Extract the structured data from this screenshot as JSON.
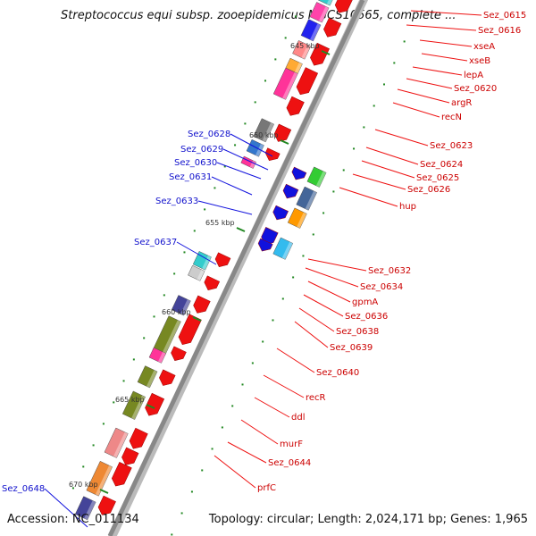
{
  "title": "Streptococcus equi subsp. zooepidemicus MGCS10565, complete ...",
  "footer": {
    "accession": "Accession: NC_011134",
    "topology": "Topology: circular; Length: 2,024,171 bp; Genes: 1,965"
  },
  "scale_labels": [
    "645 kbp",
    "650 kbp",
    "655 kbp",
    "660 kbp",
    "665 kbp",
    "670 kbp"
  ],
  "genes_right": [
    "Sez_0615",
    "Sez_0616",
    "xseA",
    "xseB",
    "lepA",
    "Sez_0620",
    "argR",
    "recN",
    "Sez_0623",
    "Sez_0624",
    "Sez_0625",
    "Sez_0626",
    "hup",
    "Sez_0632",
    "Sez_0634",
    "gpmA",
    "Sez_0636",
    "Sez_0638",
    "Sez_0639",
    "Sez_0640",
    "recR",
    "ddl",
    "murF",
    "Sez_0644",
    "prfC"
  ],
  "genes_left": [
    "Sez_0628",
    "Sez_0629",
    "Sez_0630",
    "Sez_0631",
    "Sez_0633",
    "Sez_0637",
    "Sez_0648"
  ],
  "colors": {
    "forward_strand": "#ee1111",
    "reverse_strand": "#1111dd",
    "backbone": "#888888",
    "scale_ticks": "#228822"
  }
}
